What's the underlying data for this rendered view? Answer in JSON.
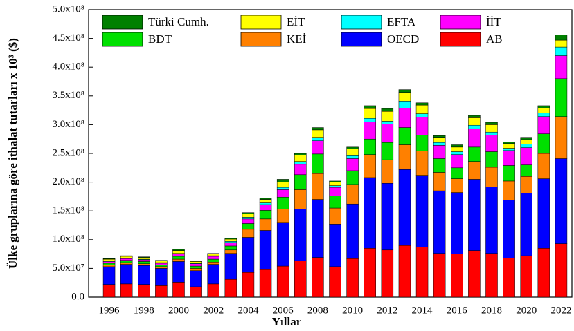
{
  "chart_data": {
    "type": "bar",
    "stacked": true,
    "x_label": "Yıllar",
    "y_label": "Ülke gruplarına göre ithalat tutarları x 10³ ($)",
    "categories": [
      "1996",
      null,
      "1998",
      null,
      "2000",
      null,
      "2002",
      null,
      "2004",
      null,
      "2006",
      null,
      "2008",
      null,
      "2010",
      null,
      "2012",
      null,
      "2014",
      null,
      "2016",
      null,
      "2018",
      null,
      "2020",
      null,
      "2022"
    ],
    "series": [
      {
        "name": "AB",
        "color": "#ff0000",
        "values": [
          22000000.0,
          23000000.0,
          22000000.0,
          20000000.0,
          26000000.0,
          18000000.0,
          23000000.0,
          31000000.0,
          43000000.0,
          48000000.0,
          54000000.0,
          63000000.0,
          69000000.0,
          53000000.0,
          67000000.0,
          85000000.0,
          82000000.0,
          90000000.0,
          87000000.0,
          76000000.0,
          75000000.0,
          81000000.0,
          76000000.0,
          68000000.0,
          72000000.0,
          85000000.0,
          93000000.0
        ]
      },
      {
        "name": "OECD",
        "color": "#0000ff",
        "values": [
          31000000.0,
          34000000.0,
          33000000.0,
          30000000.0,
          36000000.0,
          28000000.0,
          34000000.0,
          45000000.0,
          61000000.0,
          68000000.0,
          76000000.0,
          90000000.0,
          101000000.0,
          74000000.0,
          95000000.0,
          123000000.0,
          116000000.0,
          132000000.0,
          125000000.0,
          109000000.0,
          107000000.0,
          124000000.0,
          116000000.0,
          101000000.0,
          109000000.0,
          121000000.0,
          148000000.0
        ]
      },
      {
        "name": "KEİ",
        "color": "#ff8000",
        "values": [
          3000000.0,
          3000000.0,
          3000000.0,
          3000000.0,
          4000000.0,
          4000000.0,
          4000000.0,
          6000000.0,
          14000000.0,
          20000000.0,
          23000000.0,
          34000000.0,
          45000000.0,
          28000000.0,
          34000000.0,
          40000000.0,
          41000000.0,
          43000000.0,
          42000000.0,
          32000000.0,
          24000000.0,
          31000000.0,
          34000000.0,
          33000000.0,
          29000000.0,
          44000000.0,
          73000000.0
        ]
      },
      {
        "name": "BDT",
        "color": "#00e000",
        "values": [
          3000000.0,
          4000000.0,
          4000000.0,
          3000000.0,
          5000000.0,
          4000000.0,
          5000000.0,
          7000000.0,
          10000000.0,
          15000000.0,
          21000000.0,
          26000000.0,
          34000000.0,
          21000000.0,
          24000000.0,
          27000000.0,
          30000000.0,
          30000000.0,
          28000000.0,
          24000000.0,
          19000000.0,
          25000000.0,
          27000000.0,
          27000000.0,
          20000000.0,
          34000000.0,
          66000000.0
        ]
      },
      {
        "name": "İİT",
        "color": "#ff00ff",
        "values": [
          3000000.0,
          3000000.0,
          3000000.0,
          3000000.0,
          4000000.0,
          4000000.0,
          5000000.0,
          6000000.0,
          8000000.0,
          10000000.0,
          13000000.0,
          18000000.0,
          23000000.0,
          15000000.0,
          21000000.0,
          30000000.0,
          32000000.0,
          34000000.0,
          31000000.0,
          23000000.0,
          23000000.0,
          32000000.0,
          29000000.0,
          26000000.0,
          30000000.0,
          30000000.0,
          40000000.0
        ]
      },
      {
        "name": "EFTA",
        "color": "#00ffff",
        "values": [
          1000000.0,
          1000000.0,
          1000000.0,
          1000000.0,
          1000000.0,
          1000000.0,
          1000000.0,
          2000000.0,
          3000000.0,
          3000000.0,
          4000000.0,
          5000000.0,
          6000000.0,
          3000000.0,
          5000000.0,
          6000000.0,
          5000000.0,
          12000000.0,
          6000000.0,
          5000000.0,
          5000000.0,
          6000000.0,
          5000000.0,
          4000000.0,
          6000000.0,
          6000000.0,
          15000000.0
        ]
      },
      {
        "name": "EİT",
        "color": "#ffff00",
        "values": [
          3000000.0,
          3000000.0,
          3000000.0,
          3000000.0,
          5000000.0,
          3000000.0,
          3000000.0,
          4000000.0,
          6000000.0,
          6000000.0,
          9000000.0,
          11000000.0,
          13000000.0,
          6000000.0,
          12000000.0,
          17000000.0,
          17000000.0,
          15000000.0,
          15000000.0,
          9000000.0,
          8000000.0,
          13000000.0,
          13000000.0,
          8000000.0,
          8000000.0,
          9000000.0,
          12000000.0
        ]
      },
      {
        "name": "Türki Cumh.",
        "color": "#008000",
        "values": [
          1000000.0,
          1000000.0,
          1000000.0,
          1000000.0,
          2000000.0,
          1000000.0,
          1000000.0,
          2000000.0,
          2000000.0,
          2000000.0,
          5000000.0,
          3000000.0,
          4000000.0,
          2000000.0,
          3000000.0,
          5000000.0,
          5000000.0,
          5000000.0,
          4000000.0,
          3000000.0,
          4000000.0,
          4000000.0,
          4000000.0,
          3000000.0,
          4000000.0,
          4000000.0,
          9000000.0
        ]
      }
    ],
    "ylim": [
      0,
      500000000.0
    ],
    "yticks": [
      {
        "value": 0,
        "label": "0.0"
      },
      {
        "value": 50000000.0,
        "label": "5.0x10⁷"
      },
      {
        "value": 100000000.0,
        "label": "1.0x10⁸"
      },
      {
        "value": 150000000.0,
        "label": "1.5x10⁸"
      },
      {
        "value": 200000000.0,
        "label": "2.0x10⁸"
      },
      {
        "value": 250000000.0,
        "label": "2.5x10⁸"
      },
      {
        "value": 300000000.0,
        "label": "3.0x10⁸"
      },
      {
        "value": 350000000.0,
        "label": "3.5x10⁸"
      },
      {
        "value": 400000000.0,
        "label": "4.0x10⁸"
      },
      {
        "value": 450000000.0,
        "label": "4.5x10⁸"
      },
      {
        "value": 500000000.0,
        "label": "5.0x10⁸"
      }
    ],
    "grid": false,
    "legend": "top"
  }
}
